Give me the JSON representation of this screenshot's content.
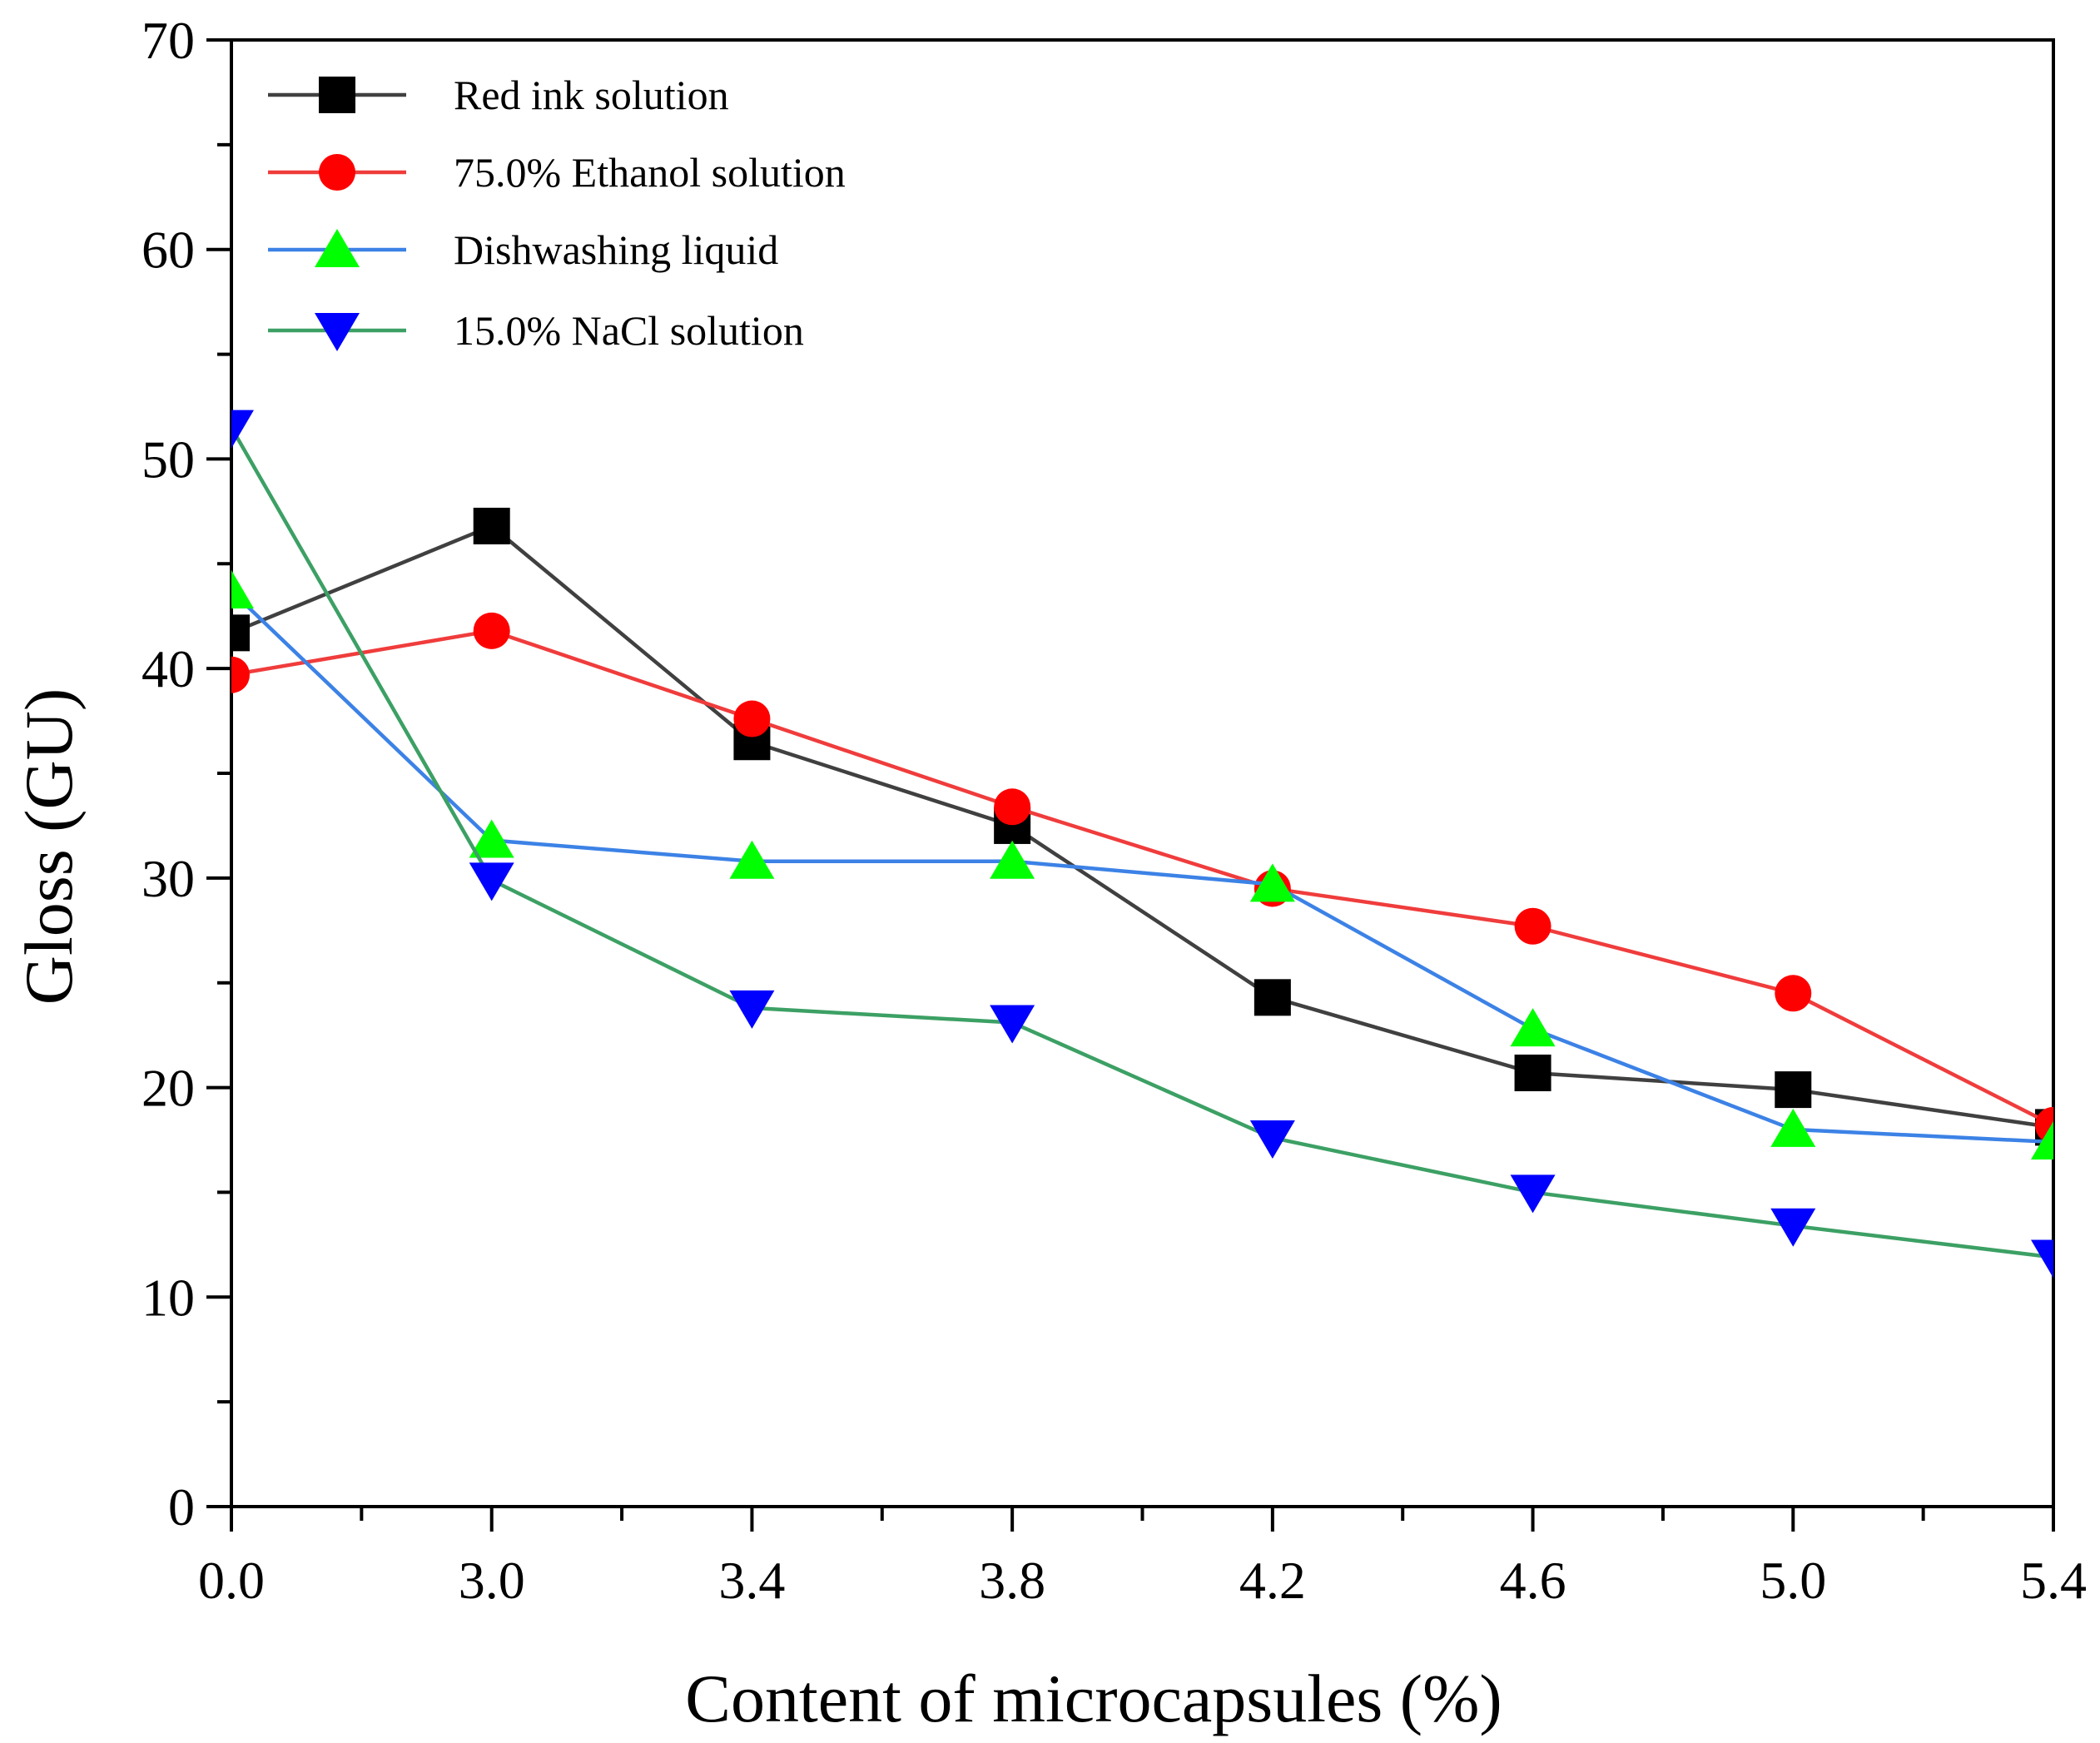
{
  "chart_data": {
    "type": "line",
    "title": "",
    "xlabel": "Content of microcapsules (%)",
    "ylabel": "Gloss (GU)",
    "categories": [
      "0.0",
      "3.0",
      "3.4",
      "3.8",
      "4.2",
      "4.6",
      "5.0",
      "5.4"
    ],
    "ylim": [
      0,
      70
    ],
    "yticks": [
      "0",
      "10",
      "20",
      "30",
      "40",
      "50",
      "60",
      "70"
    ],
    "grid": false,
    "legend_position": "top-left",
    "series": [
      {
        "name": "Red ink solution",
        "marker": "square",
        "line_color": "#404040",
        "marker_color": "#000000",
        "values": [
          41.7,
          46.8,
          36.5,
          32.5,
          24.3,
          20.7,
          19.9,
          18.1
        ]
      },
      {
        "name": "75.0% Ethanol solution",
        "marker": "circle",
        "line_color": "#f03c3c",
        "marker_color": "#ff0000",
        "values": [
          39.7,
          41.8,
          37.6,
          33.4,
          29.5,
          27.7,
          24.5,
          18.2
        ]
      },
      {
        "name": "Dishwashing liquid",
        "marker": "triangle-up",
        "line_color": "#3c82e6",
        "marker_color": "#00ff00",
        "values": [
          43.7,
          31.8,
          30.8,
          30.8,
          29.7,
          22.8,
          18.0,
          17.4
        ]
      },
      {
        "name": "15.0% NaCl solution",
        "marker": "triangle-down",
        "line_color": "#3ca064",
        "marker_color": "#0000ff",
        "values": [
          51.5,
          29.9,
          23.8,
          23.1,
          17.6,
          15.0,
          13.4,
          11.9
        ]
      }
    ]
  }
}
